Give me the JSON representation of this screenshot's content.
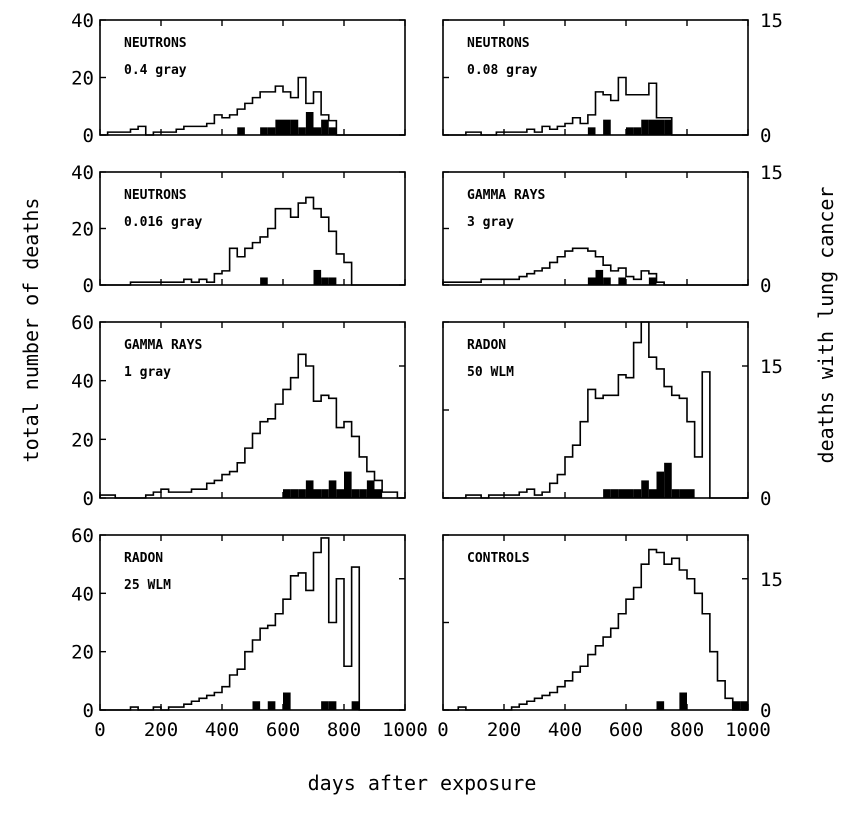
{
  "chart_data": {
    "type": "bar",
    "x_axis": {
      "label": "days after exposure",
      "ticks": [
        0,
        200,
        400,
        600,
        800,
        1000
      ]
    },
    "y_axis_left": {
      "label": "total number of deaths"
    },
    "y_axis_right": {
      "label": "deaths with lung cancer"
    },
    "series_styles": {
      "total": {
        "style": "outline",
        "color": "#000000"
      },
      "lung_cancer": {
        "style": "filled",
        "color": "#000000"
      }
    },
    "panels": [
      {
        "title": "NEUTRONS",
        "subtitle": "0.4 gray",
        "left_ticks": [
          0,
          20,
          40
        ],
        "ylim_left": [
          0,
          40
        ],
        "right_ticks": [
          0,
          15
        ],
        "ylim_right": [
          0,
          15
        ],
        "bin_width": 25,
        "x_start": 0,
        "total": [
          0,
          1,
          1,
          1,
          2,
          3,
          0,
          1,
          1,
          1,
          2,
          3,
          3,
          3,
          4,
          7,
          6,
          7,
          9,
          11,
          13,
          15,
          15,
          17,
          15,
          13,
          20,
          11,
          15,
          7,
          5,
          0,
          0,
          0,
          0,
          0,
          0,
          0,
          0,
          0
        ],
        "lung_cancer": [
          0,
          0,
          0,
          0,
          0,
          0,
          0,
          0,
          0,
          0,
          0,
          0,
          0,
          0,
          0,
          0,
          0,
          0,
          1,
          0,
          0,
          1,
          1,
          2,
          2,
          2,
          1,
          3,
          1,
          2,
          1,
          0,
          0,
          0,
          0,
          0,
          0,
          0,
          0,
          0
        ]
      },
      {
        "title": "NEUTRONS",
        "subtitle": "0.08 gray",
        "left_ticks": [],
        "ylim_left": [
          0,
          40
        ],
        "right_ticks": [
          0,
          15
        ],
        "ylim_right": [
          0,
          15
        ],
        "bin_width": 25,
        "x_start": 0,
        "total": [
          0,
          0,
          0,
          1,
          1,
          0,
          0,
          1,
          1,
          1,
          1,
          2,
          1,
          3,
          2,
          3,
          4,
          6,
          4,
          7,
          15,
          14,
          12,
          20,
          14,
          14,
          14,
          18,
          6,
          6,
          0,
          0,
          0,
          0,
          0,
          0,
          0,
          0,
          0,
          0
        ],
        "lung_cancer": [
          0,
          0,
          0,
          0,
          0,
          0,
          0,
          0,
          0,
          0,
          0,
          0,
          0,
          0,
          0,
          0,
          0,
          0,
          0,
          1,
          0,
          2,
          0,
          0,
          1,
          1,
          2,
          2,
          2,
          2,
          0,
          0,
          0,
          0,
          0,
          0,
          0,
          0,
          0,
          0
        ]
      },
      {
        "title": "NEUTRONS",
        "subtitle": "0.016 gray",
        "left_ticks": [
          0,
          20,
          40
        ],
        "ylim_left": [
          0,
          40
        ],
        "right_ticks": [
          0,
          15
        ],
        "ylim_right": [
          0,
          15
        ],
        "bin_width": 25,
        "x_start": 0,
        "total": [
          0,
          0,
          0,
          0,
          1,
          1,
          1,
          1,
          1,
          1,
          1,
          2,
          1,
          2,
          1,
          4,
          5,
          13,
          10,
          13,
          15,
          17,
          20,
          27,
          27,
          24,
          29,
          31,
          27,
          24,
          19,
          11,
          8,
          0,
          0,
          0,
          0,
          0,
          0,
          0
        ],
        "lung_cancer": [
          0,
          0,
          0,
          0,
          0,
          0,
          0,
          0,
          0,
          0,
          0,
          0,
          0,
          0,
          0,
          0,
          0,
          0,
          0,
          0,
          0,
          1,
          0,
          0,
          0,
          0,
          0,
          0,
          2,
          1,
          1,
          0,
          0,
          0,
          0,
          0,
          0,
          0,
          0,
          0
        ]
      },
      {
        "title": "GAMMA RAYS",
        "subtitle": "3 gray",
        "left_ticks": [],
        "ylim_left": [
          0,
          40
        ],
        "right_ticks": [
          0,
          15
        ],
        "ylim_right": [
          0,
          15
        ],
        "bin_width": 25,
        "x_start": 0,
        "total": [
          1,
          1,
          1,
          1,
          1,
          2,
          2,
          2,
          2,
          2,
          3,
          4,
          5,
          6,
          8,
          10,
          12,
          13,
          13,
          12,
          10,
          7,
          5,
          6,
          3,
          2,
          5,
          4,
          1,
          0,
          0,
          0,
          0,
          0,
          0,
          0,
          0,
          0,
          0,
          0
        ],
        "lung_cancer": [
          0,
          0,
          0,
          0,
          0,
          0,
          0,
          0,
          0,
          0,
          0,
          0,
          0,
          0,
          0,
          0,
          0,
          0,
          0,
          1,
          2,
          1,
          0,
          1,
          0,
          0,
          0,
          1,
          0,
          0,
          0,
          0,
          0,
          0,
          0,
          0,
          0,
          0,
          0,
          0
        ]
      },
      {
        "title": "GAMMA RAYS",
        "subtitle": "1 gray",
        "left_ticks": [
          0,
          20,
          40,
          60
        ],
        "ylim_left": [
          0,
          60
        ],
        "right_ticks": [
          0,
          15
        ],
        "ylim_right": [
          0,
          20
        ],
        "bin_width": 25,
        "x_start": 0,
        "total": [
          1,
          1,
          0,
          0,
          0,
          0,
          1,
          2,
          3,
          2,
          2,
          2,
          3,
          3,
          5,
          6,
          8,
          9,
          12,
          17,
          22,
          26,
          27,
          32,
          37,
          41,
          49,
          45,
          33,
          35,
          34,
          24,
          26,
          21,
          14,
          9,
          6,
          2,
          2,
          0
        ],
        "lung_cancer": [
          0,
          0,
          0,
          0,
          0,
          0,
          0,
          0,
          0,
          0,
          0,
          0,
          0,
          0,
          0,
          0,
          0,
          0,
          0,
          0,
          0,
          0,
          0,
          0,
          1,
          1,
          1,
          2,
          1,
          1,
          2,
          1,
          3,
          1,
          1,
          2,
          1,
          0,
          0,
          0
        ]
      },
      {
        "title": "RADON",
        "subtitle": "50 WLM",
        "left_ticks": [],
        "ylim_left": [
          0,
          60
        ],
        "right_ticks": [
          0,
          15
        ],
        "ylim_right": [
          0,
          20
        ],
        "bin_width": 25,
        "x_start": 0,
        "total": [
          0,
          0,
          0,
          1,
          1,
          0,
          1,
          1,
          1,
          1,
          2,
          3,
          1,
          2,
          5,
          8,
          14,
          18,
          26,
          37,
          34,
          35,
          35,
          42,
          41,
          53,
          60,
          48,
          44,
          38,
          35,
          34,
          26,
          14,
          43,
          0,
          0,
          0,
          0,
          0
        ],
        "lung_cancer": [
          0,
          0,
          0,
          0,
          0,
          0,
          0,
          0,
          0,
          0,
          0,
          0,
          0,
          0,
          0,
          0,
          0,
          0,
          0,
          0,
          0,
          1,
          1,
          1,
          1,
          1,
          2,
          1,
          3,
          4,
          1,
          1,
          1,
          0,
          0,
          0,
          0,
          0,
          0,
          0
        ]
      },
      {
        "title": "RADON",
        "subtitle": "25 WLM",
        "left_ticks": [
          0,
          20,
          40,
          60
        ],
        "ylim_left": [
          0,
          60
        ],
        "right_ticks": [
          0,
          15
        ],
        "ylim_right": [
          0,
          20
        ],
        "bin_width": 25,
        "x_start": 0,
        "total": [
          0,
          0,
          0,
          0,
          1,
          0,
          0,
          1,
          0,
          1,
          1,
          2,
          3,
          4,
          5,
          6,
          8,
          12,
          14,
          20,
          24,
          28,
          29,
          33,
          38,
          46,
          47,
          41,
          54,
          59,
          30,
          45,
          15,
          49,
          0,
          0,
          0,
          0,
          0,
          0
        ],
        "lung_cancer": [
          0,
          0,
          0,
          0,
          0,
          0,
          0,
          0,
          0,
          0,
          0,
          0,
          0,
          0,
          0,
          0,
          0,
          0,
          0,
          0,
          1,
          0,
          1,
          0,
          2,
          0,
          0,
          0,
          0,
          1,
          1,
          0,
          0,
          1,
          0,
          0,
          0,
          0,
          0,
          0
        ]
      },
      {
        "title": "CONTROLS",
        "subtitle": "",
        "left_ticks": [],
        "ylim_left": [
          0,
          60
        ],
        "right_ticks": [
          0,
          15
        ],
        "ylim_right": [
          0,
          20
        ],
        "bin_width": 25,
        "x_start": 0,
        "total": [
          0,
          0,
          1,
          0,
          0,
          0,
          0,
          0,
          0,
          1,
          2,
          3,
          4,
          5,
          6,
          8,
          10,
          13,
          15,
          19,
          22,
          25,
          28,
          33,
          38,
          42,
          50,
          55,
          54,
          50,
          52,
          48,
          45,
          40,
          33,
          20,
          10,
          4,
          0,
          0
        ],
        "lung_cancer": [
          0,
          0,
          0,
          0,
          0,
          0,
          0,
          0,
          0,
          0,
          0,
          0,
          0,
          0,
          0,
          0,
          0,
          0,
          0,
          0,
          0,
          0,
          0,
          0,
          0,
          0,
          0,
          0,
          1,
          0,
          0,
          2,
          0,
          0,
          0,
          0,
          0,
          0,
          1,
          1
        ]
      }
    ]
  }
}
